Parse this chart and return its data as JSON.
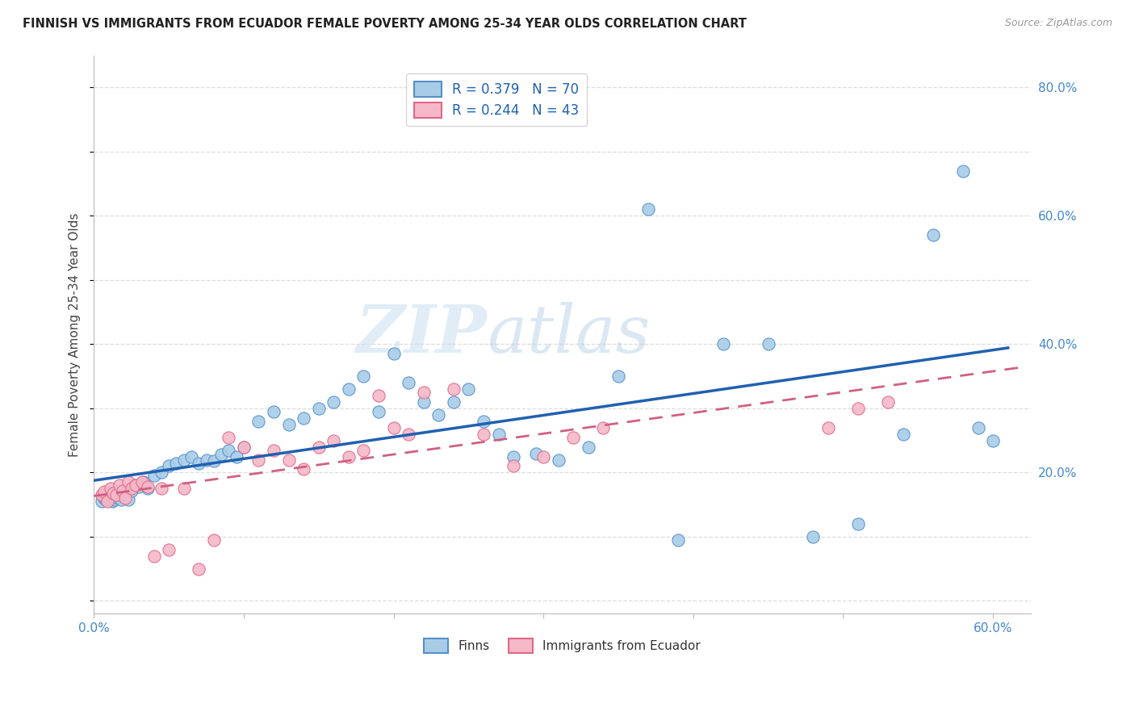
{
  "title": "FINNISH VS IMMIGRANTS FROM ECUADOR FEMALE POVERTY AMONG 25-34 YEAR OLDS CORRELATION CHART",
  "source": "Source: ZipAtlas.com",
  "ylabel": "Female Poverty Among 25-34 Year Olds",
  "xlim": [
    0.0,
    0.625
  ],
  "ylim": [
    -0.02,
    0.85
  ],
  "yticks": [
    0.0,
    0.2,
    0.4,
    0.6,
    0.8
  ],
  "yticklabels_right": [
    "",
    "20.0%",
    "40.0%",
    "60.0%",
    "80.0%"
  ],
  "xticks": [
    0.0,
    0.1,
    0.2,
    0.3,
    0.4,
    0.5,
    0.6
  ],
  "xticklabels": [
    "0.0%",
    "",
    "",
    "",
    "",
    "",
    "60.0%"
  ],
  "legend_r1": "R = 0.379   N = 70",
  "legend_r2": "R = 0.244   N = 43",
  "legend_label1": "Finns",
  "legend_label2": "Immigrants from Ecuador",
  "color_blue": "#a8cce8",
  "color_pink": "#f5b8c8",
  "edge_blue": "#5590c8",
  "edge_pink": "#e06888",
  "line_blue": "#2060b0",
  "line_pink": "#d06080",
  "background_color": "#ffffff",
  "watermark_zip": "ZIP",
  "watermark_atlas": "atlas",
  "tick_color": "#4488cc",
  "grid_color": "#dddddd",
  "finns_x": [
    0.005,
    0.007,
    0.008,
    0.009,
    0.01,
    0.011,
    0.012,
    0.013,
    0.014,
    0.015,
    0.016,
    0.017,
    0.018,
    0.019,
    0.02,
    0.021,
    0.022,
    0.023,
    0.024,
    0.025,
    0.027,
    0.03,
    0.033,
    0.036,
    0.04,
    0.045,
    0.05,
    0.055,
    0.06,
    0.065,
    0.07,
    0.075,
    0.08,
    0.085,
    0.09,
    0.095,
    0.1,
    0.11,
    0.12,
    0.13,
    0.14,
    0.15,
    0.16,
    0.17,
    0.18,
    0.19,
    0.2,
    0.21,
    0.22,
    0.23,
    0.24,
    0.25,
    0.26,
    0.27,
    0.28,
    0.295,
    0.31,
    0.33,
    0.35,
    0.37,
    0.39,
    0.42,
    0.45,
    0.48,
    0.51,
    0.54,
    0.56,
    0.58,
    0.59,
    0.6
  ],
  "finns_y": [
    0.155,
    0.16,
    0.158,
    0.162,
    0.165,
    0.168,
    0.155,
    0.16,
    0.158,
    0.162,
    0.17,
    0.165,
    0.158,
    0.172,
    0.168,
    0.165,
    0.17,
    0.158,
    0.175,
    0.172,
    0.18,
    0.178,
    0.185,
    0.175,
    0.195,
    0.2,
    0.21,
    0.215,
    0.22,
    0.225,
    0.215,
    0.22,
    0.218,
    0.228,
    0.235,
    0.225,
    0.24,
    0.28,
    0.295,
    0.275,
    0.285,
    0.3,
    0.31,
    0.33,
    0.35,
    0.295,
    0.385,
    0.34,
    0.31,
    0.29,
    0.31,
    0.33,
    0.28,
    0.26,
    0.225,
    0.23,
    0.22,
    0.24,
    0.35,
    0.61,
    0.095,
    0.4,
    0.4,
    0.1,
    0.12,
    0.26,
    0.57,
    0.67,
    0.27,
    0.25
  ],
  "ecuador_x": [
    0.005,
    0.007,
    0.009,
    0.011,
    0.013,
    0.015,
    0.017,
    0.019,
    0.021,
    0.023,
    0.025,
    0.028,
    0.032,
    0.036,
    0.04,
    0.045,
    0.05,
    0.06,
    0.07,
    0.08,
    0.09,
    0.1,
    0.11,
    0.12,
    0.13,
    0.14,
    0.15,
    0.16,
    0.17,
    0.18,
    0.19,
    0.2,
    0.21,
    0.22,
    0.24,
    0.26,
    0.28,
    0.3,
    0.32,
    0.34,
    0.49,
    0.51,
    0.53
  ],
  "ecuador_y": [
    0.165,
    0.17,
    0.155,
    0.175,
    0.168,
    0.165,
    0.18,
    0.172,
    0.16,
    0.185,
    0.175,
    0.18,
    0.185,
    0.178,
    0.07,
    0.175,
    0.08,
    0.175,
    0.05,
    0.095,
    0.255,
    0.24,
    0.22,
    0.235,
    0.22,
    0.205,
    0.24,
    0.25,
    0.225,
    0.235,
    0.32,
    0.27,
    0.26,
    0.325,
    0.33,
    0.26,
    0.21,
    0.225,
    0.255,
    0.27,
    0.27,
    0.3,
    0.31
  ]
}
